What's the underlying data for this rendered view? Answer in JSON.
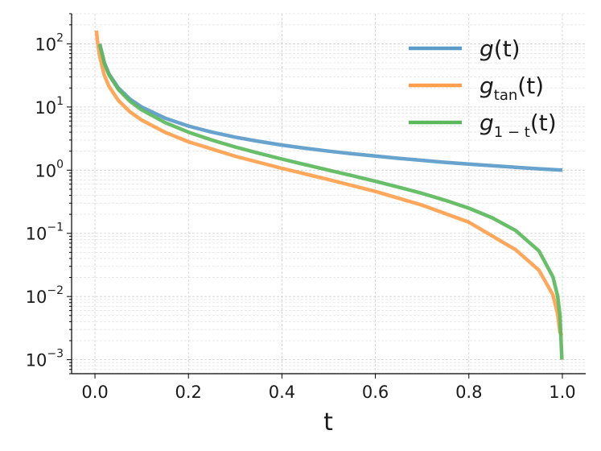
{
  "chart_data": {
    "type": "line",
    "xlabel": "t",
    "ylabel": "",
    "title": "",
    "xscale": "linear",
    "yscale": "log",
    "xlim": [
      -0.05,
      1.05
    ],
    "ylim": [
      0.0006,
      300
    ],
    "grid": true,
    "legend_position": "top-right",
    "x_ticks": [
      0.0,
      0.2,
      0.4,
      0.6,
      0.8,
      1.0
    ],
    "x_tick_labels": [
      "0.0",
      "0.2",
      "0.4",
      "0.6",
      "0.8",
      "1.0"
    ],
    "y_ticks": [
      0.001,
      0.01,
      0.1,
      1,
      10,
      100
    ],
    "y_tick_labels": [
      {
        "base": "10",
        "exp": "−3"
      },
      {
        "base": "10",
        "exp": "−2"
      },
      {
        "base": "10",
        "exp": "−1"
      },
      {
        "base": "10",
        "exp": "0"
      },
      {
        "base": "10",
        "exp": "1"
      },
      {
        "base": "10",
        "exp": "2"
      }
    ],
    "series": [
      {
        "name": "g(t)",
        "legend": {
          "main": "g",
          "sub": "",
          "arg": "(t)"
        },
        "color": "#5b9bc9",
        "x": [
          0.01,
          0.02,
          0.03,
          0.05,
          0.075,
          0.1,
          0.15,
          0.2,
          0.25,
          0.3,
          0.35,
          0.4,
          0.45,
          0.5,
          0.55,
          0.6,
          0.65,
          0.7,
          0.75,
          0.8,
          0.85,
          0.9,
          0.95,
          1.0
        ],
        "y": [
          100,
          50,
          33.3,
          20,
          13.3,
          10,
          6.67,
          5,
          4,
          3.33,
          2.86,
          2.5,
          2.22,
          2,
          1.82,
          1.67,
          1.54,
          1.43,
          1.33,
          1.25,
          1.18,
          1.11,
          1.05,
          1.0
        ]
      },
      {
        "name": "g_tan(t)",
        "legend": {
          "main": "g",
          "sub": "tan",
          "arg": "(t)"
        },
        "color": "#ff9f4d",
        "x": [
          0.003,
          0.006,
          0.01,
          0.02,
          0.03,
          0.05,
          0.075,
          0.1,
          0.15,
          0.2,
          0.3,
          0.4,
          0.5,
          0.6,
          0.7,
          0.8,
          0.9,
          0.95,
          0.98,
          0.99,
          0.995,
          0.999
        ],
        "y": [
          162,
          103,
          63.6,
          31.8,
          21.2,
          12.7,
          8.38,
          6.21,
          3.97,
          2.82,
          1.66,
          1.07,
          0.71,
          0.46,
          0.28,
          0.15,
          0.055,
          0.026,
          0.0106,
          0.0053,
          0.0027,
          0.0024
        ]
      },
      {
        "name": "g_{1-t}(t)",
        "legend": {
          "main": "g",
          "sub": "1 − t",
          "arg": "(t)"
        },
        "color": "#5cb85c",
        "x": [
          0.01,
          0.02,
          0.03,
          0.05,
          0.075,
          0.1,
          0.15,
          0.2,
          0.25,
          0.3,
          0.35,
          0.4,
          0.45,
          0.5,
          0.55,
          0.6,
          0.65,
          0.7,
          0.75,
          0.8,
          0.85,
          0.9,
          0.95,
          0.98,
          0.99,
          0.995,
          0.999
        ],
        "y": [
          99,
          49,
          32.3,
          19,
          12.3,
          9,
          5.67,
          4,
          3,
          2.33,
          1.86,
          1.5,
          1.22,
          1,
          0.818,
          0.667,
          0.538,
          0.429,
          0.333,
          0.25,
          0.176,
          0.111,
          0.0526,
          0.0204,
          0.0101,
          0.00503,
          0.001
        ]
      }
    ]
  }
}
